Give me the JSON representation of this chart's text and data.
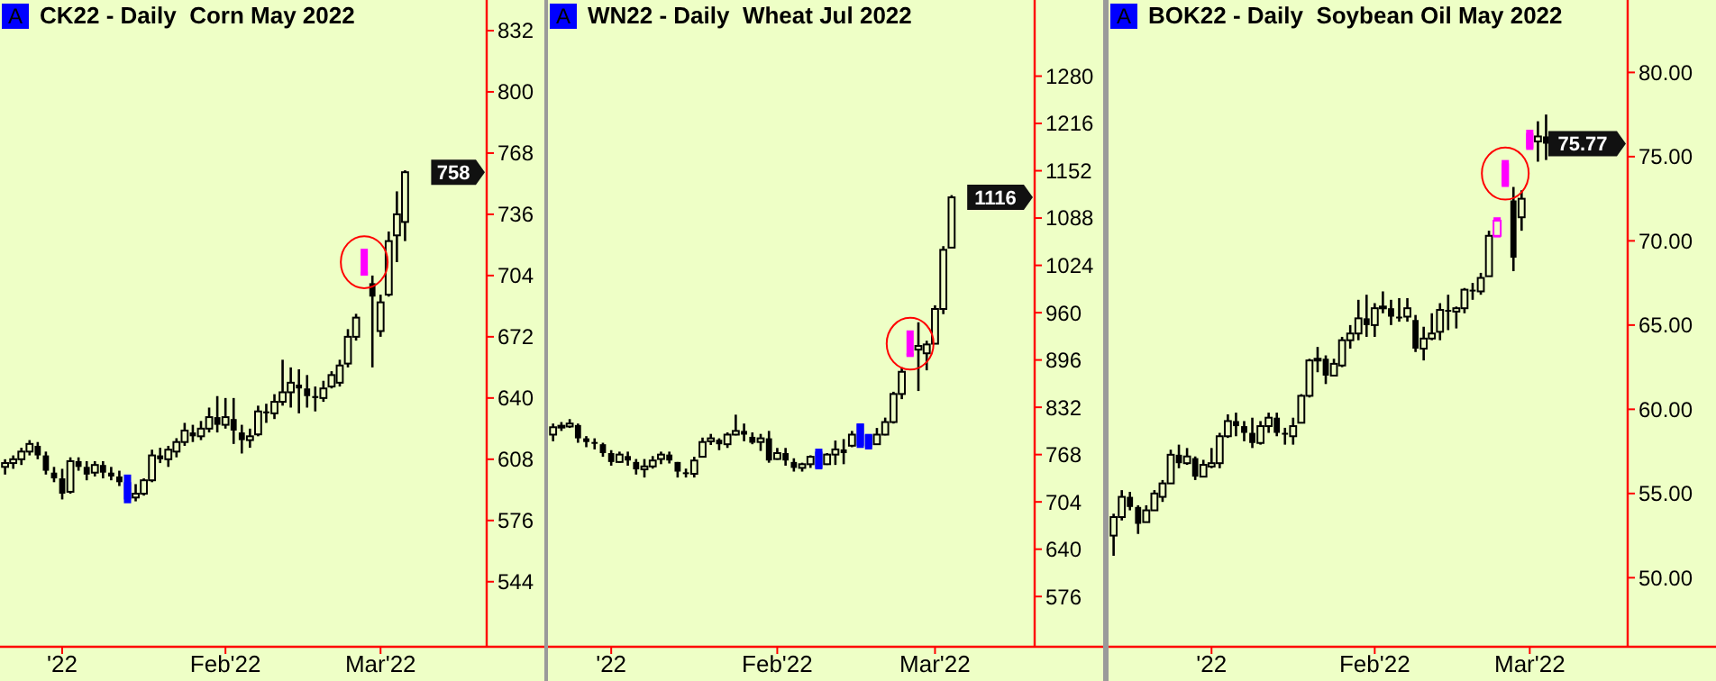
{
  "chart_data": [
    {
      "type": "candlestick",
      "title": "CK22 - Daily  Corn May 2022",
      "categories": [
        null,
        null,
        null,
        null,
        null,
        null,
        null,
        "'22",
        null,
        null,
        null,
        null,
        null,
        null,
        null,
        null,
        null,
        null,
        null,
        null,
        null,
        null,
        null,
        null,
        null,
        null,
        null,
        "Feb'22",
        null,
        null,
        null,
        null,
        null,
        null,
        null,
        null,
        null,
        null,
        null,
        null,
        null,
        null,
        null,
        null,
        null,
        null,
        "Mar'22",
        null,
        null,
        null
      ],
      "ohlc": [
        [
          604,
          608,
          600,
          606
        ],
        [
          606,
          610,
          603,
          608
        ],
        [
          608,
          614,
          605,
          612
        ],
        [
          612,
          618,
          610,
          616
        ],
        [
          615,
          617,
          608,
          610
        ],
        [
          610,
          612,
          600,
          602
        ],
        [
          601,
          604,
          596,
          598
        ],
        [
          598,
          603,
          587,
          590
        ],
        [
          591,
          609,
          590,
          607
        ],
        [
          607,
          609,
          602,
          604
        ],
        [
          604,
          607,
          597,
          600
        ],
        [
          601,
          607,
          599,
          605
        ],
        [
          605,
          607,
          598,
          601
        ],
        [
          601,
          604,
          597,
          599
        ],
        [
          599,
          602,
          594,
          596
        ],
        [
          596,
          600,
          585,
          587
        ],
        [
          588,
          595,
          586,
          590
        ],
        [
          590,
          598,
          589,
          597
        ],
        [
          597,
          613,
          596,
          610
        ],
        [
          610,
          614,
          606,
          608
        ],
        [
          608,
          615,
          604,
          613
        ],
        [
          612,
          619,
          609,
          617
        ],
        [
          617,
          627,
          615,
          623
        ],
        [
          622,
          626,
          617,
          620
        ],
        [
          620,
          628,
          618,
          624
        ],
        [
          624,
          635,
          622,
          630
        ],
        [
          630,
          641,
          622,
          626
        ],
        [
          626,
          640,
          624,
          630
        ],
        [
          629,
          640,
          616,
          623
        ],
        [
          622,
          626,
          611,
          618
        ],
        [
          618,
          624,
          614,
          620
        ],
        [
          621,
          636,
          620,
          633
        ],
        [
          633,
          637,
          627,
          632
        ],
        [
          632,
          642,
          629,
          638
        ],
        [
          638,
          660,
          636,
          643
        ],
        [
          643,
          656,
          635,
          648
        ],
        [
          647,
          655,
          632,
          645
        ],
        [
          645,
          652,
          635,
          641
        ],
        [
          641,
          646,
          633,
          640
        ],
        [
          640,
          649,
          638,
          645
        ],
        [
          646,
          654,
          645,
          652
        ],
        [
          648,
          660,
          646,
          657
        ],
        [
          658,
          676,
          656,
          672
        ],
        [
          672,
          684,
          670,
          682
        ],
        [
          706,
          718,
          704,
          704
        ],
        [
          700,
          704,
          656,
          693
        ],
        [
          675,
          694,
          672,
          690
        ],
        [
          694,
          727,
          693,
          722
        ],
        [
          725,
          748,
          711,
          736
        ],
        [
          732,
          759,
          722,
          758
        ]
      ],
      "colors": [
        "#000000",
        "#000000",
        "#000000",
        "#000000",
        "#000000",
        "#000000",
        "#000000",
        "#000000",
        "#000000",
        "#000000",
        "#000000",
        "#000000",
        "#000000",
        "#000000",
        "#000000",
        "#0000ff",
        "#000000",
        "#000000",
        "#000000",
        "#000000",
        "#000000",
        "#000000",
        "#000000",
        "#000000",
        "#000000",
        "#000000",
        "#000000",
        "#000000",
        "#000000",
        "#000000",
        "#000000",
        "#000000",
        "#000000",
        "#000000",
        "#000000",
        "#000000",
        "#000000",
        "#000000",
        "#000000",
        "#000000",
        "#000000",
        "#000000",
        "#000000",
        "#000000",
        "#ff00ff",
        "#000000",
        "#000000",
        "#000000",
        "#000000",
        "#000000"
      ],
      "ylim": [
        510,
        848
      ],
      "yticks": [
        544,
        576,
        608,
        640,
        672,
        704,
        736,
        768,
        800,
        832
      ],
      "annotations": [
        "A",
        "758"
      ]
    },
    {
      "type": "candlestick",
      "title": "WN22 - Daily  Wheat Jul 2022",
      "categories": [
        null,
        null,
        null,
        null,
        null,
        null,
        null,
        "'22",
        null,
        null,
        null,
        null,
        null,
        null,
        null,
        null,
        null,
        null,
        null,
        null,
        null,
        null,
        null,
        null,
        null,
        null,
        null,
        "Feb'22",
        null,
        null,
        null,
        null,
        null,
        null,
        null,
        null,
        null,
        null,
        null,
        null,
        null,
        null,
        null,
        null,
        null,
        null,
        "Mar'22",
        null,
        null
      ],
      "ohlc": [
        [
          795,
          810,
          786,
          805
        ],
        [
          805,
          812,
          800,
          807
        ],
        [
          806,
          816,
          804,
          810
        ],
        [
          808,
          810,
          784,
          790
        ],
        [
          790,
          793,
          778,
          785
        ],
        [
          785,
          790,
          775,
          784
        ],
        [
          782,
          784,
          765,
          770
        ],
        [
          770,
          774,
          753,
          758
        ],
        [
          758,
          772,
          757,
          768
        ],
        [
          766,
          772,
          753,
          760
        ],
        [
          758,
          762,
          741,
          748
        ],
        [
          748,
          762,
          737,
          752
        ],
        [
          752,
          766,
          749,
          760
        ],
        [
          762,
          772,
          755,
          768
        ],
        [
          768,
          772,
          756,
          760
        ],
        [
          758,
          758,
          737,
          745
        ],
        [
          744,
          749,
          737,
          742
        ],
        [
          742,
          765,
          737,
          760
        ],
        [
          765,
          791,
          765,
          785
        ],
        [
          786,
          796,
          781,
          790
        ],
        [
          788,
          790,
          774,
          782
        ],
        [
          782,
          798,
          777,
          795
        ],
        [
          795,
          822,
          794,
          800
        ],
        [
          800,
          810,
          786,
          795
        ],
        [
          792,
          798,
          782,
          784
        ],
        [
          785,
          796,
          773,
          790
        ],
        [
          790,
          800,
          757,
          760
        ],
        [
          762,
          777,
          761,
          770
        ],
        [
          770,
          777,
          753,
          760
        ],
        [
          758,
          763,
          745,
          750
        ],
        [
          750,
          757,
          745,
          755
        ],
        [
          755,
          767,
          750,
          765
        ],
        [
          772,
          776,
          748,
          750
        ],
        [
          755,
          770,
          754,
          768
        ],
        [
          768,
          787,
          754,
          775
        ],
        [
          775,
          789,
          755,
          770
        ],
        [
          780,
          800,
          778,
          795
        ],
        [
          810,
          810,
          777,
          780
        ],
        [
          795,
          796,
          775,
          778
        ],
        [
          782,
          804,
          782,
          795
        ],
        [
          795,
          818,
          794,
          812
        ],
        [
          812,
          853,
          810,
          850
        ],
        [
          850,
          886,
          843,
          880
        ],
        [
          905,
          936,
          900,
          902
        ],
        [
          910,
          947,
          854,
          915
        ],
        [
          905,
          922,
          882,
          917
        ],
        [
          918,
          970,
          918,
          965
        ],
        [
          965,
          1050,
          958,
          1045
        ],
        [
          1048,
          1119,
          1048,
          1116
        ]
      ],
      "colors": [
        "#000000",
        "#000000",
        "#000000",
        "#000000",
        "#000000",
        "#000000",
        "#000000",
        "#000000",
        "#000000",
        "#000000",
        "#000000",
        "#000000",
        "#000000",
        "#000000",
        "#000000",
        "#000000",
        "#000000",
        "#000000",
        "#000000",
        "#000000",
        "#000000",
        "#000000",
        "#000000",
        "#000000",
        "#000000",
        "#000000",
        "#000000",
        "#000000",
        "#000000",
        "#000000",
        "#000000",
        "#000000",
        "#0000ff",
        "#000000",
        "#000000",
        "#000000",
        "#000000",
        "#0000ff",
        "#0000ff",
        "#000000",
        "#000000",
        "#000000",
        "#000000",
        "#ff00ff",
        "#000000",
        "#000000",
        "#000000",
        "#000000",
        "#000000"
      ],
      "ylim": [
        508,
        1383
      ],
      "yticks": [
        576,
        640,
        704,
        768,
        832,
        896,
        960,
        1024,
        1088,
        1152,
        1216,
        1280
      ],
      "annotations": [
        "A",
        "1116"
      ]
    },
    {
      "type": "candlestick",
      "title": "BOK22 - Daily  Soybean Oil May 2022",
      "categories": [
        null,
        null,
        null,
        null,
        null,
        null,
        null,
        null,
        null,
        null,
        null,
        null,
        "'22",
        null,
        null,
        null,
        null,
        null,
        null,
        null,
        null,
        null,
        null,
        null,
        null,
        null,
        null,
        null,
        null,
        null,
        null,
        null,
        "Feb'22",
        null,
        null,
        null,
        null,
        null,
        null,
        null,
        null,
        null,
        null,
        null,
        null,
        null,
        null,
        null,
        null,
        null,
        null,
        "Mar'22",
        null,
        null
      ],
      "ohlc": [
        [
          52.5,
          53.8,
          51.3,
          53.6
        ],
        [
          53.6,
          55.2,
          53.4,
          54.8
        ],
        [
          54.8,
          55.1,
          54.0,
          54.2
        ],
        [
          54.2,
          54.3,
          52.6,
          53.2
        ],
        [
          53.3,
          54.3,
          53.3,
          54.0
        ],
        [
          54.0,
          55.2,
          54.0,
          55.0
        ],
        [
          54.8,
          55.8,
          54.5,
          55.6
        ],
        [
          55.6,
          57.6,
          55.6,
          57.3
        ],
        [
          57.3,
          57.9,
          56.5,
          56.8
        ],
        [
          56.8,
          57.7,
          56.7,
          57.2
        ],
        [
          57.1,
          57.2,
          55.8,
          56.0
        ],
        [
          56.0,
          57.0,
          56.0,
          56.7
        ],
        [
          56.6,
          57.7,
          56.5,
          56.8
        ],
        [
          56.8,
          58.6,
          56.5,
          58.4
        ],
        [
          58.4,
          59.7,
          58.3,
          59.3
        ],
        [
          59.3,
          59.8,
          58.4,
          59.0
        ],
        [
          59.0,
          59.3,
          58.1,
          58.6
        ],
        [
          58.6,
          59.5,
          57.7,
          58.0
        ],
        [
          58.0,
          59.3,
          57.9,
          59.0
        ],
        [
          59.0,
          59.8,
          58.6,
          59.5
        ],
        [
          59.5,
          59.8,
          58.4,
          58.6
        ],
        [
          58.6,
          58.9,
          57.9,
          58.5
        ],
        [
          58.4,
          59.5,
          57.9,
          59.0
        ],
        [
          59.2,
          60.9,
          59.2,
          60.8
        ],
        [
          60.8,
          63.0,
          60.7,
          62.9
        ],
        [
          62.9,
          63.7,
          62.2,
          63.0
        ],
        [
          63.0,
          63.2,
          61.5,
          62.0
        ],
        [
          62.0,
          63.0,
          62.0,
          62.7
        ],
        [
          62.6,
          64.3,
          62.5,
          64.1
        ],
        [
          64.1,
          65.0,
          63.6,
          64.5
        ],
        [
          64.5,
          66.5,
          64.1,
          65.4
        ],
        [
          65.4,
          66.8,
          64.3,
          65.0
        ],
        [
          65.0,
          66.3,
          64.3,
          66.0
        ],
        [
          66.0,
          67.0,
          65.7,
          66.1
        ],
        [
          66.0,
          66.5,
          65.0,
          65.5
        ],
        [
          65.5,
          66.6,
          65.2,
          65.4
        ],
        [
          65.5,
          66.6,
          65.2,
          66.0
        ],
        [
          65.3,
          65.6,
          63.4,
          63.6
        ],
        [
          63.6,
          64.9,
          62.9,
          64.2
        ],
        [
          64.2,
          65.7,
          64.1,
          64.5
        ],
        [
          64.6,
          66.3,
          64.1,
          65.9
        ],
        [
          65.9,
          66.8,
          64.7,
          65.8
        ],
        [
          65.8,
          66.1,
          64.8,
          66.0
        ],
        [
          66.0,
          67.2,
          65.7,
          67.1
        ],
        [
          67.1,
          67.5,
          66.5,
          67.0
        ],
        [
          67.0,
          68.1,
          66.8,
          67.8
        ],
        [
          67.9,
          70.6,
          67.9,
          70.3
        ],
        [
          70.3,
          71.4,
          70.2,
          71.2
        ],
        [
          74.6,
          74.8,
          73.2,
          73.3
        ],
        [
          72.4,
          73.2,
          68.2,
          69.0
        ],
        [
          71.4,
          73.0,
          70.6,
          72.5
        ],
        [
          76.4,
          76.6,
          75.4,
          75.5
        ],
        [
          75.9,
          77.1,
          74.7,
          76.2
        ],
        [
          76.2,
          77.5,
          74.8,
          75.77
        ]
      ],
      "colors": [
        "#000000",
        "#000000",
        "#000000",
        "#000000",
        "#000000",
        "#000000",
        "#000000",
        "#000000",
        "#000000",
        "#000000",
        "#000000",
        "#000000",
        "#000000",
        "#000000",
        "#000000",
        "#000000",
        "#000000",
        "#000000",
        "#000000",
        "#000000",
        "#000000",
        "#000000",
        "#000000",
        "#000000",
        "#000000",
        "#000000",
        "#000000",
        "#000000",
        "#000000",
        "#000000",
        "#000000",
        "#000000",
        "#000000",
        "#000000",
        "#000000",
        "#000000",
        "#000000",
        "#000000",
        "#000000",
        "#000000",
        "#000000",
        "#000000",
        "#000000",
        "#000000",
        "#000000",
        "#000000",
        "#000000",
        "#ff00ff",
        "#ff00ff",
        "#000000",
        "#000000",
        "#ff00ff",
        "#000000",
        "#000000"
      ],
      "ylim": [
        45.9,
        84.3
      ],
      "yticks": [
        {
          "value": 50,
          "label": "50.00"
        },
        {
          "value": 55,
          "label": "55.00"
        },
        {
          "value": 60,
          "label": "60.00"
        },
        {
          "value": 65,
          "label": "65.00"
        },
        {
          "value": 70,
          "label": "70.00"
        },
        {
          "value": 75,
          "label": "75.00"
        },
        {
          "value": 80,
          "label": "80.00"
        }
      ],
      "annotations": [
        "A",
        "75.77"
      ]
    }
  ]
}
